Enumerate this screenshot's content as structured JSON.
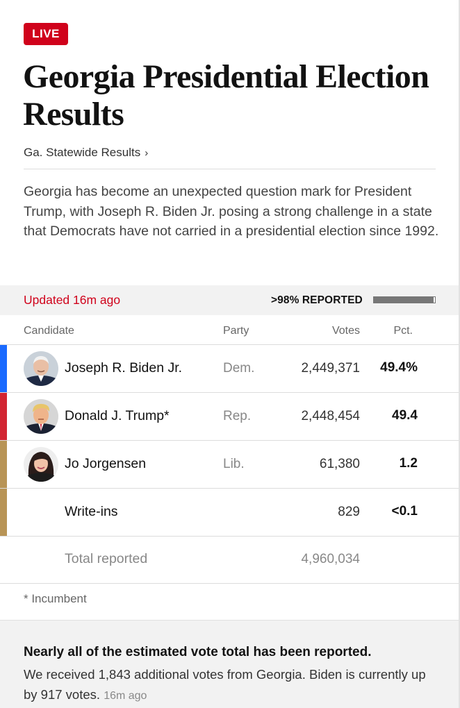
{
  "live_badge": "LIVE",
  "headline": "Georgia Presidential Election Results",
  "breadcrumb": {
    "label": "Ga. Statewide Results",
    "chevron": "›"
  },
  "summary": "Georgia has become an unexpected question mark for President Trump, with Joseph R. Biden Jr. posing a strong challenge in a state that Democrats have not carried in a presidential election since 1992.",
  "status": {
    "updated": "Updated 16m ago",
    "reported_label": ">98% REPORTED",
    "reported_fraction": 0.98
  },
  "table": {
    "headers": {
      "candidate": "Candidate",
      "party": "Party",
      "votes": "Votes",
      "pct": "Pct."
    },
    "rows": [
      {
        "name": "Joseph R. Biden Jr.",
        "party": "Dem.",
        "votes": "2,449,371",
        "pct": "49.4%",
        "color": "#1a6aff",
        "avatar": "biden-photo"
      },
      {
        "name": "Donald J. Trump*",
        "party": "Rep.",
        "votes": "2,448,454",
        "pct": "49.4",
        "color": "#d22532",
        "avatar": "trump-photo"
      },
      {
        "name": "Jo Jorgensen",
        "party": "Lib.",
        "votes": "61,380",
        "pct": "1.2",
        "color": "#b89456",
        "avatar": "jorgensen-photo"
      },
      {
        "name": "Write-ins",
        "party": "",
        "votes": "829",
        "pct": "<0.1",
        "color": "#b89456"
      }
    ],
    "total": {
      "label": "Total reported",
      "votes": "4,960,034"
    }
  },
  "footnote": "* Incumbent",
  "update": {
    "title": "Nearly all of the estimated vote total has been reported.",
    "body": "We received 1,843 additional votes from Georgia. Biden is currently up by 917 votes.",
    "time": "16m ago"
  },
  "colors": {
    "live_red": "#d0021b",
    "dem_blue": "#1a6aff",
    "rep_red": "#d22532",
    "lib_gold": "#b89456"
  }
}
